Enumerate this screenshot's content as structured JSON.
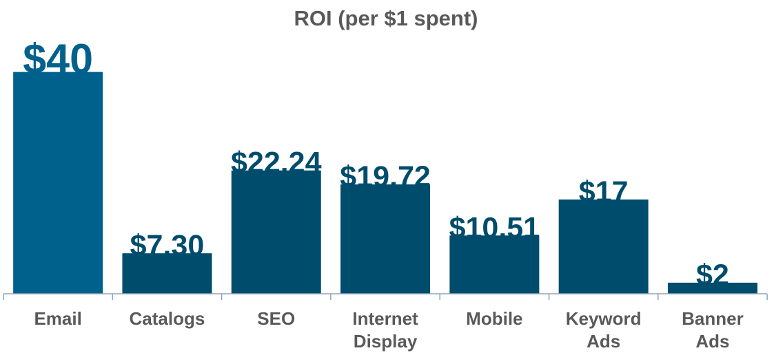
{
  "chart_data": {
    "type": "bar",
    "title": "ROI (per $1 spent)",
    "xlabel": "",
    "ylabel": "",
    "categories": [
      [
        "Email"
      ],
      [
        "Catalogs"
      ],
      [
        "SEO"
      ],
      [
        "Internet",
        "Display"
      ],
      [
        "Mobile"
      ],
      [
        "Keyword",
        "Ads"
      ],
      [
        "Banner",
        "Ads"
      ]
    ],
    "values": [
      40,
      7.3,
      22.24,
      19.72,
      10.51,
      17,
      2
    ],
    "labels": [
      "$40",
      "$7.30",
      "$22.24",
      "$19.72",
      "$10.51",
      "$17",
      "$2"
    ],
    "grid": false,
    "legend": "none",
    "colors": {
      "highlight": "#00618D",
      "bar": "#004C6C",
      "axis": "#8EA3BA",
      "text": "#595959"
    }
  }
}
